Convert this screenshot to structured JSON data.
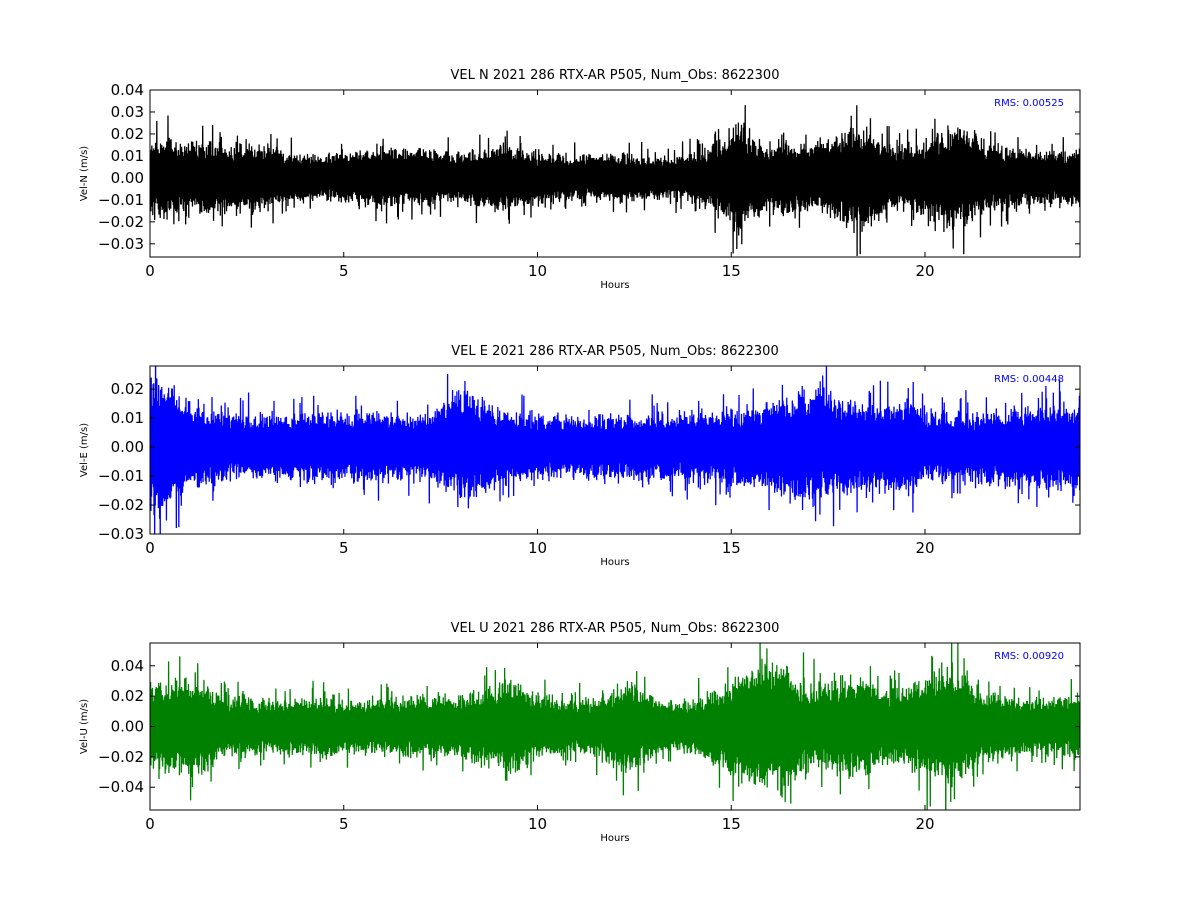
{
  "chart_data": [
    {
      "type": "line",
      "title": "VEL N 2021 286 RTX-AR  P505, Num_Obs: 8622300",
      "xlabel": "Hours",
      "ylabel": "Vel-N (m/s)",
      "xlim": [
        0,
        24
      ],
      "ylim": [
        -0.036,
        0.04
      ],
      "xticks": [
        "0",
        "5",
        "10",
        "15",
        "20"
      ],
      "yticks": [
        "−0.03",
        "−0.02",
        "−0.01",
        "0.00",
        "0.01",
        "0.02",
        "0.03",
        "0.04"
      ],
      "color": "#000000",
      "rms_label": "RMS:  0.00525",
      "rms_value": 0.00525,
      "envelope": {
        "x": [
          0,
          0.5,
          1,
          2,
          3,
          3.6,
          4,
          5,
          6,
          7,
          8,
          9,
          10,
          11,
          12,
          13,
          13.5,
          14,
          14.5,
          15,
          15.2,
          15.5,
          16,
          16.5,
          17,
          17.5,
          18,
          18.5,
          19,
          19.5,
          20,
          20.5,
          20.8,
          21,
          21.5,
          22,
          23,
          24
        ],
        "amplitude": [
          0.018,
          0.02,
          0.018,
          0.017,
          0.017,
          0.013,
          0.011,
          0.012,
          0.015,
          0.014,
          0.012,
          0.016,
          0.013,
          0.011,
          0.012,
          0.011,
          0.01,
          0.012,
          0.016,
          0.022,
          0.03,
          0.02,
          0.017,
          0.018,
          0.016,
          0.017,
          0.024,
          0.026,
          0.018,
          0.016,
          0.018,
          0.024,
          0.027,
          0.025,
          0.018,
          0.015,
          0.013,
          0.014
        ]
      }
    },
    {
      "type": "line",
      "title": "VEL E 2021 286 RTX-AR  P505, Num_Obs: 8622300",
      "xlabel": "Hours",
      "ylabel": "Vel-E (m/s)",
      "xlim": [
        0,
        24
      ],
      "ylim": [
        -0.03,
        0.028
      ],
      "xticks": [
        "0",
        "5",
        "10",
        "15",
        "20"
      ],
      "yticks": [
        "−0.03",
        "−0.02",
        "−0.01",
        "0.00",
        "0.01",
        "0.02"
      ],
      "color": "#0000ff",
      "rms_label": "RMS:  0.00448",
      "rms_value": 0.00448,
      "envelope": {
        "x": [
          0,
          0.3,
          0.6,
          1,
          2,
          3,
          4,
          5,
          6,
          7,
          7.5,
          8,
          8.5,
          9,
          10,
          11,
          12,
          13,
          14,
          15,
          15.5,
          16,
          17,
          17.5,
          18,
          19,
          19.6,
          20,
          21,
          22,
          23,
          24
        ],
        "amplitude": [
          0.025,
          0.027,
          0.022,
          0.016,
          0.012,
          0.012,
          0.013,
          0.013,
          0.013,
          0.012,
          0.015,
          0.021,
          0.018,
          0.014,
          0.012,
          0.011,
          0.012,
          0.012,
          0.013,
          0.014,
          0.015,
          0.017,
          0.021,
          0.02,
          0.017,
          0.017,
          0.018,
          0.012,
          0.013,
          0.014,
          0.015,
          0.016
        ]
      }
    },
    {
      "type": "line",
      "title": "VEL U 2021 286 RTX-AR  P505, Num_Obs: 8622300",
      "xlabel": "Hours",
      "ylabel": "Vel-U (m/s)",
      "xlim": [
        0,
        24
      ],
      "ylim": [
        -0.055,
        0.055
      ],
      "xticks": [
        "0",
        "5",
        "10",
        "15",
        "20"
      ],
      "yticks": [
        "−0.04",
        "−0.02",
        "0.00",
        "0.02",
        "0.04"
      ],
      "color": "#008000",
      "rms_label": "RMS:  0.00920",
      "rms_value": 0.0092,
      "envelope": {
        "x": [
          0,
          0.5,
          1,
          1.5,
          2,
          3,
          4,
          4.5,
          5,
          6,
          7,
          8,
          9,
          9.5,
          10,
          11,
          11.5,
          12,
          12.3,
          13,
          13.5,
          14,
          14.5,
          15,
          15.5,
          16,
          16.5,
          17,
          18,
          18.5,
          19,
          19.5,
          20,
          20.5,
          21,
          21.5,
          22,
          23,
          24
        ],
        "amplitude": [
          0.028,
          0.032,
          0.035,
          0.03,
          0.022,
          0.02,
          0.02,
          0.024,
          0.018,
          0.02,
          0.022,
          0.022,
          0.03,
          0.032,
          0.022,
          0.018,
          0.02,
          0.03,
          0.033,
          0.022,
          0.017,
          0.02,
          0.026,
          0.032,
          0.042,
          0.045,
          0.04,
          0.03,
          0.035,
          0.033,
          0.025,
          0.028,
          0.035,
          0.045,
          0.035,
          0.025,
          0.022,
          0.02,
          0.022
        ]
      }
    }
  ]
}
